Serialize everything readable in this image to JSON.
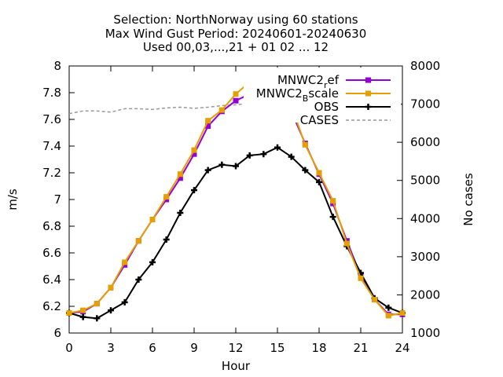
{
  "chart_data": {
    "type": "line",
    "title_lines": [
      "Selection: NorthNorway using    60 stations",
      "Max Wind Gust   Period: 20240601-20240630",
      "Used 00,03,...,21 + 01 02 ... 12"
    ],
    "xlabel": "Hour",
    "ylabel": "m/s",
    "y2label": "No cases",
    "xlim": [
      0,
      24
    ],
    "ylim": [
      6,
      8
    ],
    "y2lim": [
      1000,
      8000
    ],
    "xticks": [
      "0",
      "3",
      "6",
      "9",
      "12",
      "15",
      "18",
      "21",
      "24"
    ],
    "yticks": [
      "6",
      "6.2",
      "6.4",
      "6.6",
      "6.8",
      "7",
      "7.2",
      "7.4",
      "7.6",
      "7.8",
      "8"
    ],
    "y2ticks": [
      "1000",
      "2000",
      "3000",
      "4000",
      "5000",
      "6000",
      "7000",
      "8000"
    ],
    "legend_position": "top-right",
    "series": [
      {
        "name": "MNWC2_ref",
        "legend_main": "MNWC2",
        "legend_sub": "r",
        "legend_rest": "ef",
        "color": "#9400d3",
        "axis": "left",
        "marker": "square",
        "x": [
          0,
          1,
          2,
          3,
          4,
          5,
          6,
          7,
          8,
          9,
          10,
          11,
          12,
          13,
          14,
          15,
          16,
          17,
          18,
          19,
          20,
          21,
          22,
          23,
          24
        ],
        "y": [
          6.15,
          6.16,
          6.22,
          6.34,
          6.51,
          6.69,
          6.85,
          7.0,
          7.16,
          7.34,
          7.55,
          7.66,
          7.74,
          7.79,
          7.76,
          7.72,
          7.66,
          7.42,
          7.19,
          6.97,
          6.69,
          6.43,
          6.25,
          6.14,
          6.14
        ]
      },
      {
        "name": "MNWC2_Bscale",
        "legend_main": "MNWC2",
        "legend_sub": "B",
        "legend_rest": "scale",
        "color": "#e69f00",
        "axis": "left",
        "marker": "square",
        "x": [
          0,
          1,
          2,
          3,
          4,
          5,
          6,
          7,
          8,
          9,
          10,
          11,
          12,
          13,
          14,
          15,
          16,
          17,
          18,
          19,
          20,
          21,
          22,
          23,
          24
        ],
        "y": [
          6.15,
          6.17,
          6.22,
          6.34,
          6.53,
          6.69,
          6.85,
          7.02,
          7.19,
          7.37,
          7.59,
          7.67,
          7.79,
          7.88,
          7.83,
          7.8,
          7.7,
          7.41,
          7.2,
          6.99,
          6.67,
          6.41,
          6.25,
          6.13,
          6.15
        ]
      },
      {
        "name": "OBS",
        "color": "#000000",
        "axis": "left",
        "marker": "plus",
        "x": [
          0,
          1,
          2,
          3,
          4,
          5,
          6,
          7,
          8,
          9,
          10,
          11,
          12,
          13,
          14,
          15,
          16,
          17,
          18,
          19,
          20,
          21,
          22,
          23,
          24
        ],
        "y": [
          6.15,
          6.12,
          6.11,
          6.17,
          6.23,
          6.4,
          6.53,
          6.7,
          6.9,
          7.07,
          7.22,
          7.26,
          7.25,
          7.33,
          7.34,
          7.39,
          7.32,
          7.22,
          7.13,
          6.87,
          6.65,
          6.45,
          6.26,
          6.19,
          6.15
        ]
      },
      {
        "name": "CASES",
        "color": "#999999",
        "axis": "right",
        "dash": true,
        "x": [
          0,
          1,
          2,
          3,
          4,
          5,
          6,
          7,
          8,
          9,
          10,
          11,
          12,
          13,
          14,
          15,
          16,
          17,
          18,
          19,
          20,
          21,
          22,
          23,
          24
        ],
        "y": [
          6750,
          6820,
          6820,
          6790,
          6880,
          6880,
          6860,
          6900,
          6920,
          6890,
          6920,
          6960,
          6980,
          7020,
          7030,
          7020,
          7050,
          7020,
          6980,
          6960,
          6920,
          6860,
          6820,
          6780,
          6690
        ]
      }
    ]
  }
}
